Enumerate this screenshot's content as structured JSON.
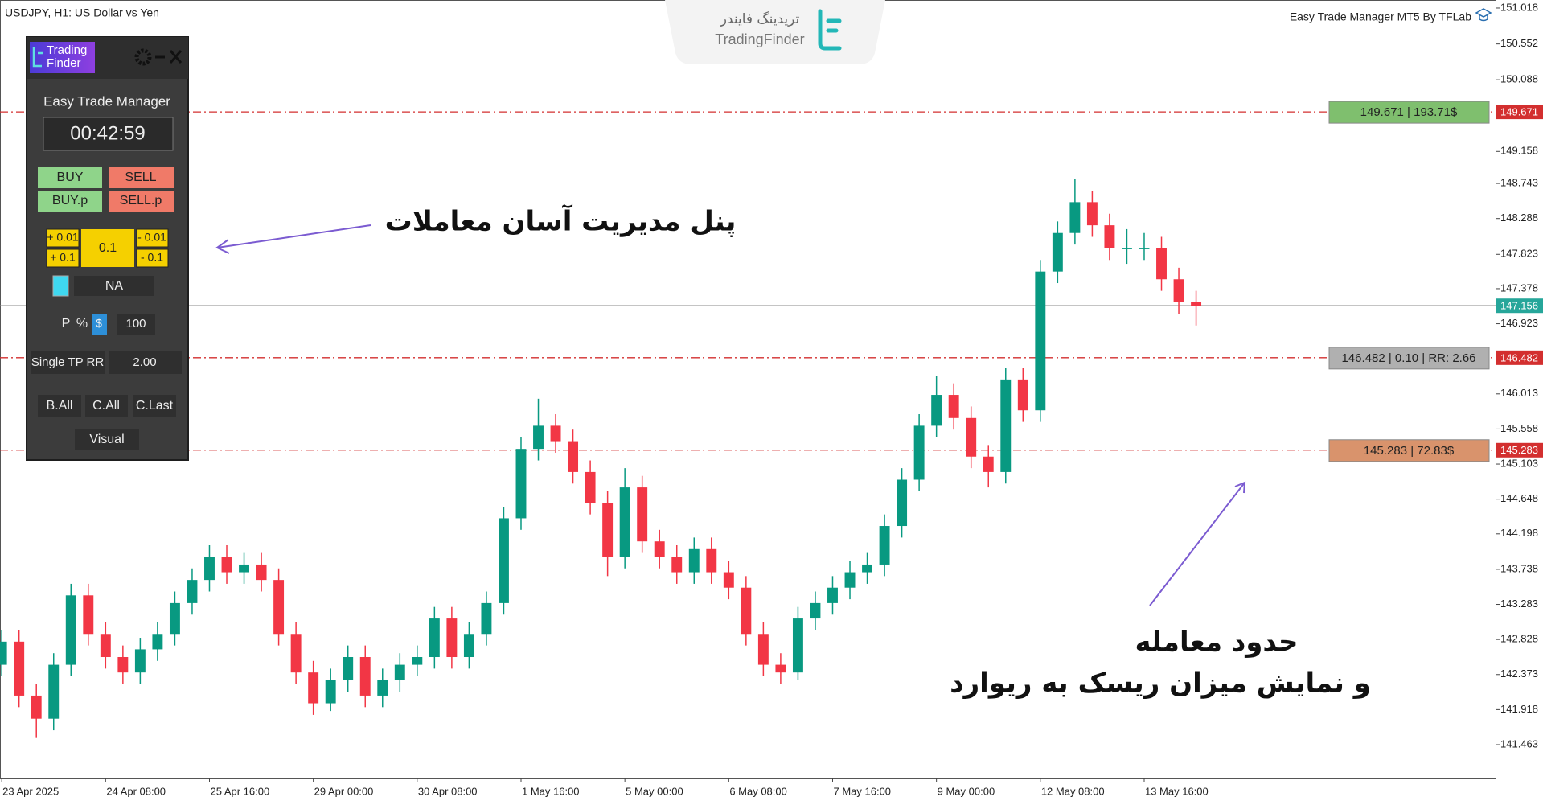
{
  "header": {
    "symbol": "USDJPY, H1:  US Dollar vs Yen",
    "indicator": "Easy Trade Manager MT5 By TFLab",
    "watermark_fa": "تریدینگ فایندر",
    "watermark_en": "TradingFinder"
  },
  "panel": {
    "logo": [
      "Trading",
      "Finder"
    ],
    "title": "Easy Trade Manager",
    "timer": "00:42:59",
    "buy": "BUY",
    "sell": "SELL",
    "buy_p": "BUY.p",
    "sell_p": "SELL.p",
    "plus_small": "+ 0.01",
    "plus_big": "+ 0.1",
    "lot": "0.1",
    "minus_small": "- 0.01",
    "minus_big": "- 0.1",
    "mode": "NA",
    "risk_p": "P",
    "risk_pct": "%",
    "risk_usd": "$",
    "risk_value": "100",
    "tp_mode": "Single TP RR",
    "tp_value": "2.00",
    "close_buys": "B.All",
    "close_all": "C.All",
    "close_last": "C.Last",
    "visual": "Visual"
  },
  "annotations": {
    "panel_note": "پنل مدیریت آسان معاملات",
    "levels_note": [
      "حدود معامله",
      "و نمایش میزان ریسک به ریوارد"
    ]
  },
  "chart_data": {
    "type": "candlestick",
    "up_color": "#089981",
    "down_color": "#f23645",
    "open": [
      142.5,
      142.8,
      142.1,
      141.8,
      142.5,
      143.4,
      142.9,
      142.6,
      142.4,
      142.7,
      142.9,
      143.3,
      143.6,
      143.9,
      143.7,
      143.8,
      143.6,
      142.9,
      142.4,
      142.0,
      142.3,
      142.6,
      142.1,
      142.3,
      142.5,
      142.6,
      143.1,
      142.6,
      142.9,
      143.3,
      144.4,
      145.3,
      145.6,
      145.4,
      145.0,
      144.6,
      143.9,
      144.8,
      144.1,
      143.9,
      143.7,
      144.0,
      143.7,
      143.5,
      142.9,
      142.5,
      142.4,
      143.1,
      143.3,
      143.5,
      143.7,
      143.8,
      144.3,
      144.9,
      145.6,
      146.0,
      145.7,
      145.2,
      145.0,
      146.2,
      145.8,
      147.6,
      148.1,
      148.5,
      148.2,
      147.9,
      147.9,
      147.9,
      147.5,
      147.2
    ],
    "high": [
      142.95,
      142.95,
      142.25,
      142.65,
      143.55,
      143.55,
      143.05,
      142.75,
      142.85,
      143.05,
      143.45,
      143.75,
      144.05,
      144.05,
      143.95,
      143.95,
      143.75,
      143.05,
      142.55,
      142.45,
      142.75,
      142.75,
      142.45,
      142.65,
      142.75,
      143.25,
      143.25,
      143.05,
      143.45,
      144.55,
      145.45,
      145.95,
      145.75,
      145.55,
      145.15,
      144.75,
      145.05,
      144.95,
      144.25,
      144.05,
      144.15,
      144.15,
      143.85,
      143.65,
      143.05,
      142.65,
      143.25,
      143.45,
      143.65,
      143.85,
      143.95,
      144.45,
      145.05,
      145.75,
      146.25,
      146.15,
      145.85,
      145.35,
      146.35,
      146.35,
      147.75,
      148.25,
      148.8,
      148.65,
      148.35,
      148.15,
      148.1,
      148.05,
      147.65,
      147.35
    ],
    "low": [
      142.35,
      141.95,
      141.55,
      141.65,
      142.35,
      142.75,
      142.45,
      142.25,
      142.25,
      142.55,
      142.75,
      143.15,
      143.45,
      143.55,
      143.55,
      143.45,
      142.75,
      142.25,
      141.85,
      141.9,
      142.15,
      141.95,
      141.95,
      142.15,
      142.35,
      142.45,
      142.45,
      142.45,
      142.75,
      143.15,
      144.25,
      145.15,
      145.25,
      144.85,
      144.45,
      143.65,
      143.75,
      143.95,
      143.75,
      143.55,
      143.55,
      143.55,
      143.35,
      142.75,
      142.35,
      142.25,
      142.3,
      142.95,
      143.15,
      143.35,
      143.55,
      143.65,
      144.15,
      144.75,
      145.45,
      145.55,
      145.05,
      144.8,
      144.85,
      145.65,
      145.65,
      147.45,
      147.95,
      148.05,
      147.75,
      147.7,
      147.75,
      147.35,
      147.05,
      146.9
    ],
    "close": [
      142.8,
      142.1,
      141.8,
      142.5,
      143.4,
      142.9,
      142.6,
      142.4,
      142.7,
      142.9,
      143.3,
      143.6,
      143.9,
      143.7,
      143.8,
      143.6,
      142.9,
      142.4,
      142.0,
      142.3,
      142.6,
      142.1,
      142.3,
      142.5,
      142.6,
      143.1,
      142.6,
      142.9,
      143.3,
      144.4,
      145.3,
      145.6,
      145.4,
      145.0,
      144.6,
      143.9,
      144.8,
      144.1,
      143.9,
      143.7,
      144.0,
      143.7,
      143.5,
      142.9,
      142.5,
      142.4,
      143.1,
      143.3,
      143.5,
      143.7,
      143.8,
      144.3,
      144.9,
      145.6,
      146.0,
      145.7,
      145.2,
      145.0,
      146.2,
      145.8,
      147.6,
      148.1,
      148.5,
      148.2,
      147.9,
      147.9,
      147.9,
      147.5,
      147.2,
      147.156
    ],
    "xlim": [
      -0.1,
      86.3
    ],
    "xticks": [
      {
        "value": 0,
        "label": "23 Apr 2025"
      },
      {
        "value": 6,
        "label": "24 Apr 08:00"
      },
      {
        "value": 12,
        "label": "25 Apr 16:00"
      },
      {
        "value": 18,
        "label": "29 Apr 00:00"
      },
      {
        "value": 24,
        "label": "30 Apr 08:00"
      },
      {
        "value": 30,
        "label": "1 May 16:00"
      },
      {
        "value": 36,
        "label": "5 May 00:00"
      },
      {
        "value": 42,
        "label": "6 May 08:00"
      },
      {
        "value": 48,
        "label": "7 May 16:00"
      },
      {
        "value": 54,
        "label": "9 May 00:00"
      },
      {
        "value": 60,
        "label": "12 May 08:00"
      },
      {
        "value": 66,
        "label": "13 May 16:00"
      }
    ],
    "ylim": [
      141.025,
      151.122
    ],
    "yticks": [
      151.018,
      150.552,
      150.088,
      149.158,
      148.743,
      148.288,
      147.823,
      147.378,
      146.923,
      146.013,
      145.558,
      145.103,
      144.648,
      144.198,
      143.738,
      143.283,
      142.828,
      142.373,
      141.918,
      141.463
    ],
    "current_price": 147.156,
    "current_color": "#26a69a",
    "levels": [
      {
        "value": 149.671,
        "label": "149.671 | 193.71$",
        "color": "#7fbf6e"
      },
      {
        "value": 146.482,
        "label": "146.482 | 0.10 | RR: 2.66",
        "color": "#b0b0b0"
      },
      {
        "value": 145.283,
        "label": "145.283 | 72.83$",
        "color": "#d9936c"
      }
    ],
    "level_line_color": "#d32f2f"
  }
}
